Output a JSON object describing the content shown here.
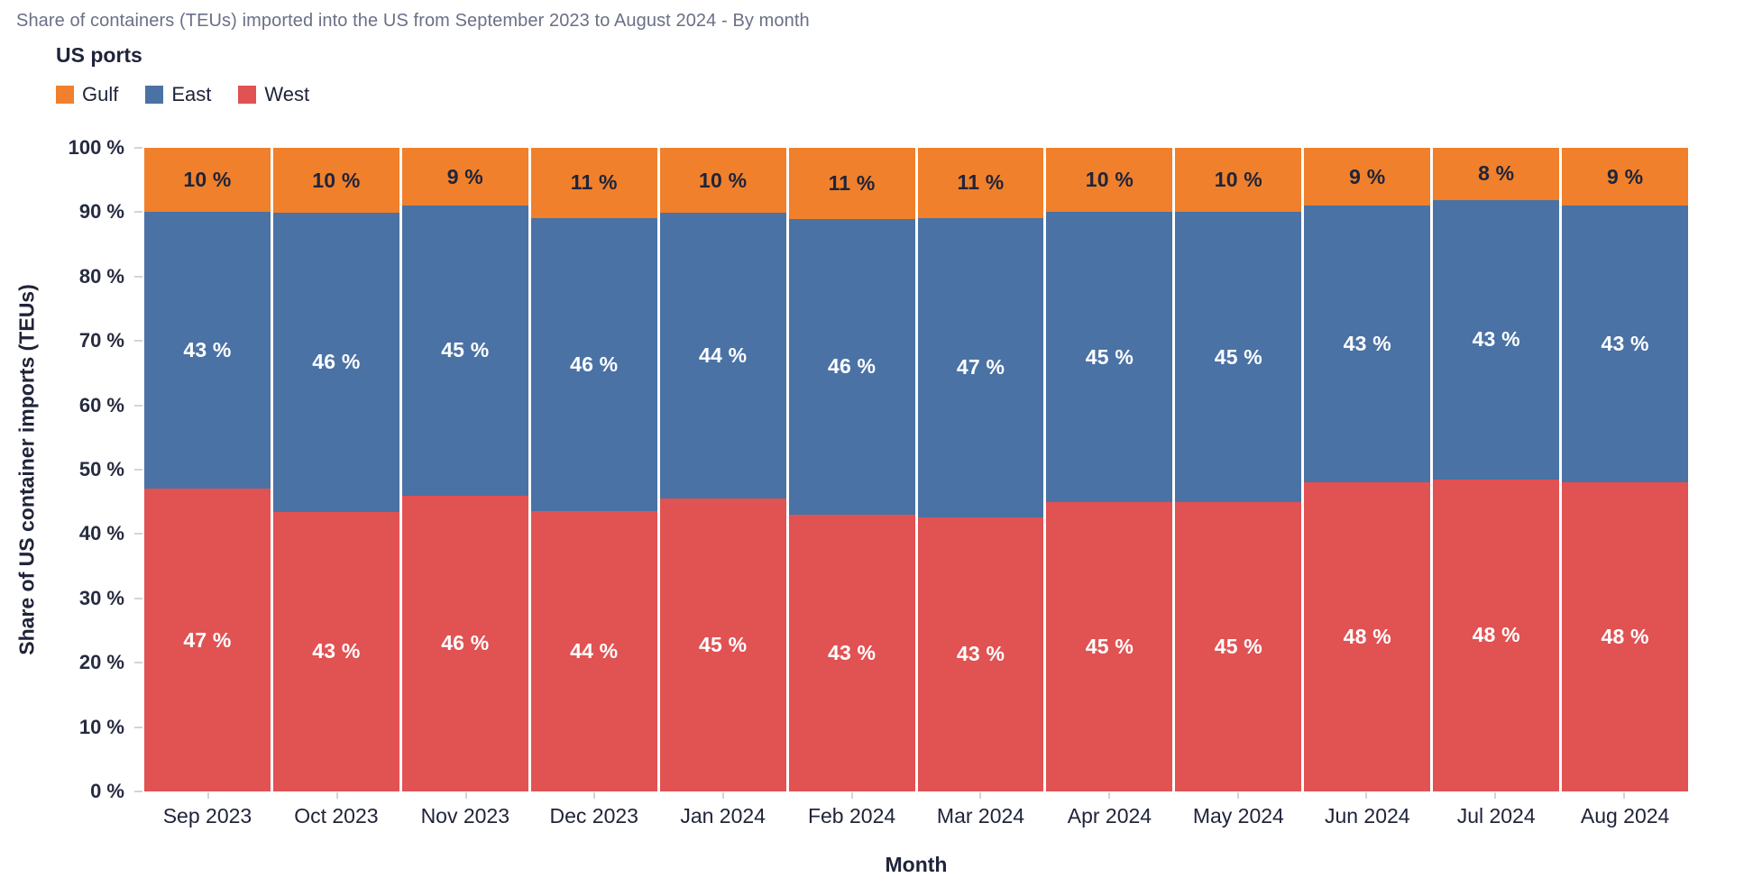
{
  "title": "Share of containers (TEUs) imported into the US from September 2023 to August 2024 - By month",
  "legend": {
    "title": "US ports",
    "items": [
      {
        "label": "Gulf",
        "color": "#F0802B"
      },
      {
        "label": "East",
        "color": "#4A72A5"
      },
      {
        "label": "West",
        "color": "#E15253"
      }
    ]
  },
  "colors": {
    "gulf": "#F0802B",
    "east": "#4A72A5",
    "west": "#E15253",
    "title_text": "#6A7086",
    "dark_text": "#20243A",
    "tick_mark": "#d4d4d4",
    "label_on_gulf": "#20243A",
    "label_on_east": "#FFFFFF",
    "label_on_west": "#FFFFFF"
  },
  "chart_data": {
    "type": "bar",
    "stacked": true,
    "percent": true,
    "title": "Share of containers (TEUs) imported into the US from September 2023 to August 2024 - By month",
    "xlabel": "Month",
    "ylabel": "Share of US container imports (TEUs)",
    "ylim": [
      0,
      100
    ],
    "grid": false,
    "legend_position": "top-left",
    "legend_title": "US ports",
    "value_suffix": " %",
    "categories": [
      "Sep 2023",
      "Oct 2023",
      "Nov 2023",
      "Dec 2023",
      "Jan 2024",
      "Feb 2024",
      "Mar 2024",
      "Apr 2024",
      "May 2024",
      "Jun 2024",
      "Jul 2024",
      "Aug 2024"
    ],
    "y_ticks": [
      "0 %",
      "10 %",
      "20 %",
      "30 %",
      "40 %",
      "50 %",
      "60 %",
      "70 %",
      "80 %",
      "90 %",
      "100 %"
    ],
    "series": [
      {
        "name": "West",
        "color": "#E15253",
        "label_color": "#FFFFFF",
        "values": [
          47,
          43,
          46,
          44,
          45,
          43,
          43,
          45,
          45,
          48,
          48,
          48
        ]
      },
      {
        "name": "East",
        "color": "#4A72A5",
        "label_color": "#FFFFFF",
        "values": [
          43,
          46,
          45,
          46,
          44,
          46,
          47,
          45,
          45,
          43,
          43,
          43
        ]
      },
      {
        "name": "Gulf",
        "color": "#F0802B",
        "label_color": "#20243A",
        "values": [
          10,
          10,
          9,
          11,
          10,
          11,
          11,
          10,
          10,
          9,
          8,
          9
        ]
      }
    ]
  }
}
